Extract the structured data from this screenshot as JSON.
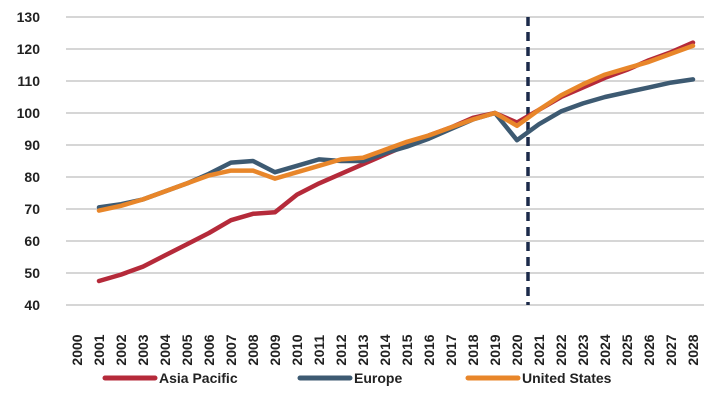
{
  "chart_data": {
    "type": "line",
    "categories": [
      "2000",
      "2001",
      "2002",
      "2003",
      "2004",
      "2005",
      "2006",
      "2007",
      "2008",
      "2009",
      "2010",
      "2011",
      "2012",
      "2013",
      "2014",
      "2015",
      "2016",
      "2017",
      "2018",
      "2019",
      "2020",
      "2021",
      "2022",
      "2023",
      "2024",
      "2025",
      "2026",
      "2027",
      "2028"
    ],
    "ylim": [
      40,
      130
    ],
    "yticks": [
      40,
      50,
      60,
      70,
      80,
      90,
      100,
      110,
      120,
      130
    ],
    "grid": true,
    "legend_position": "bottom",
    "forecast_divider_after": "2020",
    "series": [
      {
        "name": "Asia Pacific",
        "color": "#b52a3a",
        "values": [
          null,
          47.5,
          49.5,
          52,
          55.5,
          59,
          62.5,
          66.5,
          68.5,
          69,
          74.5,
          78,
          81,
          84,
          87,
          90,
          93,
          95.5,
          98.5,
          100,
          97,
          101,
          105,
          108,
          111,
          113.5,
          116.5,
          119,
          122
        ]
      },
      {
        "name": "Europe",
        "color": "#3d5a72",
        "values": [
          null,
          70.5,
          71.5,
          73,
          75.5,
          78,
          81,
          84.5,
          85,
          81.5,
          83.5,
          85.5,
          85,
          85,
          87.5,
          89.5,
          92,
          95,
          98,
          100,
          91.5,
          96.5,
          100.5,
          103,
          105,
          106.5,
          108,
          109.5,
          110.5
        ]
      },
      {
        "name": "United States",
        "color": "#e8862a",
        "values": [
          null,
          69.5,
          71,
          73,
          75.5,
          78,
          80.5,
          82,
          82,
          79.5,
          81.5,
          83.5,
          85.5,
          86,
          88.5,
          91,
          93,
          95.5,
          98,
          100,
          96,
          101,
          105.5,
          109,
          112,
          114,
          116,
          118.5,
          121
        ]
      }
    ]
  }
}
